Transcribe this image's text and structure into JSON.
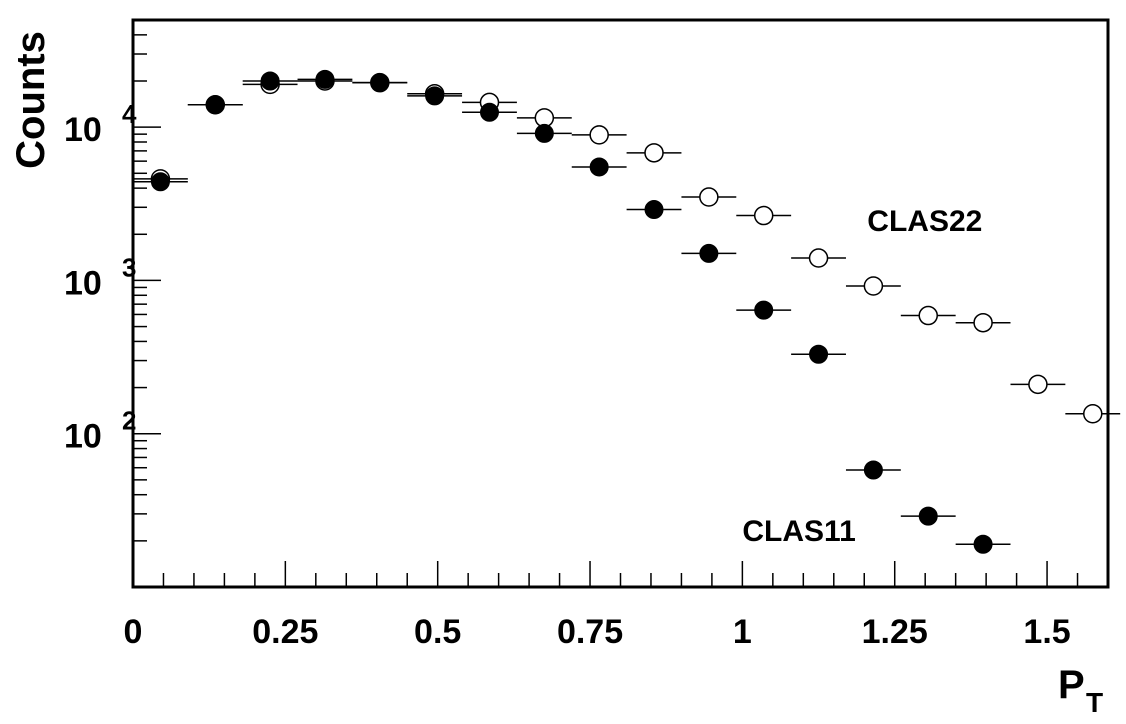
{
  "chart_data": {
    "type": "scatter",
    "title": "",
    "xlabel": "P",
    "xlabel_subscript": "T",
    "ylabel": "Counts",
    "xlim": [
      0,
      1.6
    ],
    "ylim": [
      10,
      50000
    ],
    "yscale": "log",
    "grid": false,
    "x_ticks": [
      {
        "value": 0,
        "label": "0"
      },
      {
        "value": 0.25,
        "label": "0.25"
      },
      {
        "value": 0.5,
        "label": "0.5"
      },
      {
        "value": 0.75,
        "label": "0.75"
      },
      {
        "value": 1,
        "label": "1"
      },
      {
        "value": 1.25,
        "label": "1.25"
      },
      {
        "value": 1.5,
        "label": "1.5"
      }
    ],
    "y_ticks": [
      {
        "value": 100,
        "base": "10",
        "exponent": "2"
      },
      {
        "value": 1000,
        "base": "10",
        "exponent": "3"
      },
      {
        "value": 10000,
        "base": "10",
        "exponent": "4"
      }
    ],
    "x_error": 0.045,
    "series": [
      {
        "name": "CLAS11",
        "marker": "filled-circle",
        "color": "#000000",
        "label_at": [
          1.0,
          20
        ],
        "x": [
          0.045,
          0.135,
          0.225,
          0.315,
          0.405,
          0.495,
          0.585,
          0.675,
          0.765,
          0.855,
          0.945,
          1.035,
          1.125,
          1.215,
          1.305,
          1.395
        ],
        "y": [
          4400,
          14000,
          20000,
          20500,
          19500,
          16000,
          12500,
          9100,
          5500,
          2900,
          1500,
          640,
          330,
          58,
          29,
          19
        ]
      },
      {
        "name": "CLAS22",
        "marker": "open-circle",
        "color": "#000000",
        "label_at": [
          1.205,
          2100
        ],
        "x": [
          0.045,
          0.135,
          0.225,
          0.315,
          0.405,
          0.495,
          0.585,
          0.675,
          0.765,
          0.855,
          0.945,
          1.035,
          1.125,
          1.215,
          1.305,
          1.395,
          1.485,
          1.575
        ],
        "y": [
          4600,
          14000,
          19000,
          20000,
          19500,
          16500,
          14500,
          11500,
          8900,
          6800,
          3500,
          2650,
          1400,
          920,
          590,
          530,
          210,
          135
        ]
      }
    ]
  }
}
